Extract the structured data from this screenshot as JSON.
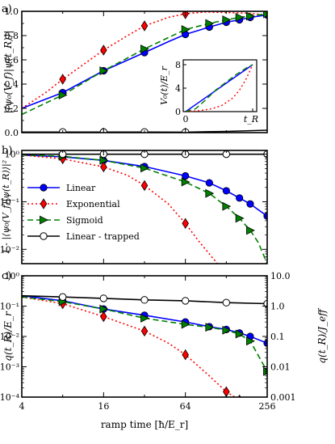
{
  "chart_data": [
    {
      "panel_label": "a)",
      "type": "line",
      "xscale": "log2",
      "xlim": [
        4,
        256
      ],
      "ylim": [
        0,
        1.0
      ],
      "ylabel": "|⟨ψ₀(V_f)|ψ(t_R)⟩|",
      "yticks": [
        "0.0",
        "0.2",
        "0.4",
        "0.6",
        "0.8",
        "1.0"
      ],
      "series": [
        {
          "name": "Linear",
          "color": "#0000ff",
          "dash": "solid",
          "marker": "circle",
          "x": [
            4,
            8,
            16,
            32,
            48,
            64,
            96,
            128,
            160,
            192,
            256
          ],
          "y": [
            0.2,
            0.33,
            0.51,
            0.66,
            0.75,
            0.81,
            0.87,
            0.91,
            0.93,
            0.95,
            0.97
          ],
          "marker_x": [
            8,
            16,
            32,
            64,
            96,
            128,
            160,
            192,
            256
          ]
        },
        {
          "name": "Exponential",
          "color": "#ff0000",
          "dash": "dot",
          "marker": "diamond",
          "x": [
            4,
            6,
            8,
            11,
            16,
            24,
            32,
            48,
            64,
            90,
            128,
            180,
            256
          ],
          "y": [
            0.2,
            0.33,
            0.44,
            0.55,
            0.68,
            0.8,
            0.88,
            0.95,
            0.98,
            0.995,
            0.99,
            0.985,
            0.97
          ],
          "marker_x": [
            8,
            16,
            32,
            64
          ]
        },
        {
          "name": "Sigmoid",
          "color": "#008000",
          "dash": "dash",
          "marker": "triangle-right",
          "x": [
            4,
            8,
            16,
            32,
            64,
            96,
            128,
            160,
            192,
            256
          ],
          "y": [
            0.15,
            0.31,
            0.51,
            0.69,
            0.85,
            0.9,
            0.93,
            0.95,
            0.96,
            0.98
          ],
          "marker_x": [
            8,
            16,
            32,
            64,
            96,
            128,
            160,
            192,
            256
          ]
        },
        {
          "name": "Linear - trapped",
          "color": "#000000",
          "dash": "solid",
          "marker": "open-circle",
          "x": [
            4,
            8,
            16,
            32,
            64,
            128,
            256
          ],
          "y": [
            0.005,
            0.005,
            0.005,
            0.005,
            0.004,
            0.01,
            0.02
          ],
          "marker_x": [
            8,
            16,
            32,
            64
          ]
        }
      ],
      "inset": {
        "ylabel": "V₀(t)/E_r",
        "yticks": [
          "0",
          "4",
          "8"
        ],
        "xticks": [
          "0",
          "t_R"
        ],
        "ylim": [
          0,
          8
        ],
        "series": [
          {
            "name": "Linear",
            "color": "#0000ff",
            "dash": "solid",
            "t": [
              0,
              1
            ],
            "v": [
              0,
              8
            ]
          },
          {
            "name": "Exponential",
            "color": "#ff0000",
            "dash": "dot",
            "t": [
              0,
              0.2,
              0.4,
              0.55,
              0.7,
              0.8,
              0.9,
              1.0
            ],
            "v": [
              0,
              0.15,
              0.5,
              1.1,
              2.3,
              3.6,
              5.5,
              8
            ]
          },
          {
            "name": "Sigmoid",
            "color": "#008000",
            "dash": "dash",
            "t": [
              0,
              0.15,
              0.3,
              0.45,
              0.6,
              0.75,
              0.9,
              1.0
            ],
            "v": [
              0,
              0.5,
              2.0,
              3.7,
              5.0,
              6.3,
              7.4,
              8
            ]
          }
        ]
      }
    },
    {
      "panel_label": "b)",
      "type": "line",
      "xscale": "log2",
      "yscale": "log",
      "xlim": [
        4,
        256
      ],
      "ylim": [
        0.005,
        1.2
      ],
      "ylabel": "1 - |⟨ψ₀(V_f)|ψ(t_R)⟩|²",
      "yticks": [
        "10⁰",
        "10⁻¹",
        "10⁻²"
      ],
      "legend": {
        "loc": "lower-left",
        "entries": [
          "Linear",
          "Exponential",
          "Sigmoid",
          "Linear - trapped"
        ]
      },
      "series": [
        {
          "name": "Linear",
          "x": [
            4,
            8,
            16,
            32,
            64,
            96,
            128,
            160,
            192,
            256
          ],
          "y": [
            0.96,
            0.88,
            0.74,
            0.55,
            0.35,
            0.25,
            0.17,
            0.12,
            0.09,
            0.05
          ],
          "marker_x": [
            8,
            16,
            32,
            64,
            96,
            128,
            160,
            192,
            256
          ]
        },
        {
          "name": "Exponential",
          "x": [
            4,
            8,
            16,
            24,
            32,
            48,
            64,
            80,
            96,
            128
          ],
          "y": [
            0.96,
            0.8,
            0.54,
            0.36,
            0.22,
            0.09,
            0.035,
            0.015,
            0.008,
            0.003
          ],
          "marker_x": [
            8,
            16,
            32,
            64
          ]
        },
        {
          "name": "Sigmoid",
          "x": [
            4,
            8,
            16,
            32,
            64,
            96,
            128,
            160,
            192,
            220,
            256
          ],
          "y": [
            0.97,
            0.9,
            0.74,
            0.51,
            0.26,
            0.15,
            0.08,
            0.045,
            0.025,
            0.014,
            0.005
          ],
          "marker_x": [
            8,
            16,
            32,
            64,
            96,
            128,
            160,
            192
          ]
        },
        {
          "name": "Linear - trapped",
          "x": [
            4,
            8,
            16,
            32,
            64,
            128,
            256
          ],
          "y": [
            1.0,
            1.0,
            1.0,
            1.0,
            1.0,
            1.0,
            1.0
          ],
          "marker_x": [
            8,
            16,
            32,
            64,
            128,
            256
          ]
        }
      ]
    },
    {
      "panel_label": "c)",
      "type": "line",
      "xscale": "log2",
      "yscale": "log",
      "xlim": [
        4,
        256
      ],
      "ylim": [
        0.0001,
        1
      ],
      "xlabel": "ramp time [ħ/E_r]",
      "xticks": [
        "4",
        "16",
        "64",
        "256"
      ],
      "ylabel": "q(t_R)/E_r",
      "yticks": [
        "10⁰",
        "10⁻¹",
        "10⁻²",
        "10⁻³",
        "10⁻⁴"
      ],
      "ylabel_right": "q(t_R)/J_eff",
      "yticks_right": [
        "10.0",
        "1.0",
        "0.1",
        "0.01",
        "0.001"
      ],
      "series": [
        {
          "name": "Linear",
          "x": [
            4,
            8,
            16,
            32,
            64,
            96,
            128,
            160,
            192,
            256
          ],
          "y": [
            0.22,
            0.15,
            0.08,
            0.05,
            0.03,
            0.021,
            0.017,
            0.013,
            0.01,
            0.006
          ],
          "marker_x": [
            8,
            16,
            32,
            64,
            96,
            128,
            160,
            192,
            256
          ]
        },
        {
          "name": "Exponential",
          "x": [
            4,
            8,
            16,
            32,
            48,
            64,
            96,
            128,
            160
          ],
          "y": [
            0.2,
            0.12,
            0.045,
            0.015,
            0.006,
            0.0025,
            0.0005,
            0.00015,
            8e-05
          ],
          "marker_x": [
            8,
            16,
            32,
            64,
            128,
            160
          ]
        },
        {
          "name": "Sigmoid",
          "x": [
            4,
            8,
            16,
            32,
            64,
            96,
            128,
            160,
            192,
            256
          ],
          "y": [
            0.2,
            0.14,
            0.08,
            0.04,
            0.025,
            0.02,
            0.016,
            0.012,
            0.007,
            0.0007
          ],
          "marker_x": [
            8,
            16,
            32,
            64,
            96,
            128,
            160,
            192,
            256
          ]
        },
        {
          "name": "Linear - trapped",
          "x": [
            4,
            8,
            16,
            32,
            64,
            128,
            256
          ],
          "y": [
            0.22,
            0.2,
            0.18,
            0.16,
            0.15,
            0.13,
            0.12
          ],
          "marker_x": [
            8,
            16,
            32,
            64,
            128,
            256
          ]
        }
      ]
    }
  ]
}
